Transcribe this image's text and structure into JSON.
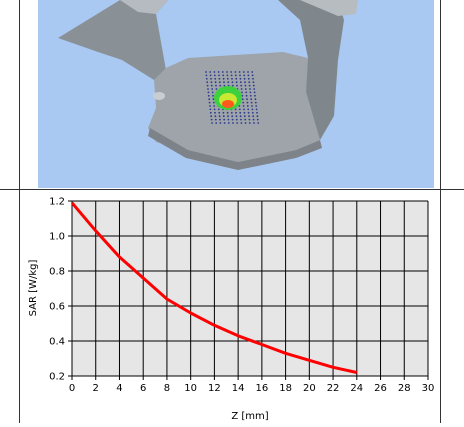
{
  "scene": {
    "icon": "phantom-probe-3d-view",
    "background_color": "#a9c9f2"
  },
  "chart_data": {
    "type": "line",
    "title": "",
    "xlabel": "Z [mm]",
    "ylabel": "SAR [W/kg]",
    "xlim": [
      0,
      30
    ],
    "ylim": [
      0.2,
      1.2
    ],
    "xticks": [
      "0",
      "2",
      "4",
      "6",
      "8",
      "10",
      "12",
      "14",
      "16",
      "18",
      "20",
      "22",
      "24",
      "26",
      "28",
      "30"
    ],
    "yticks": [
      "0.2",
      "0.4",
      "0.6",
      "0.8",
      "1.0",
      "1.2"
    ],
    "grid": true,
    "series": [
      {
        "color": "#ff0000",
        "x": [
          0,
          2,
          4,
          6,
          8,
          10,
          12,
          14,
          16,
          18,
          20,
          22,
          24
        ],
        "y": [
          1.19,
          1.03,
          0.88,
          0.76,
          0.64,
          0.56,
          0.49,
          0.43,
          0.38,
          0.33,
          0.29,
          0.25,
          0.22
        ]
      }
    ]
  }
}
